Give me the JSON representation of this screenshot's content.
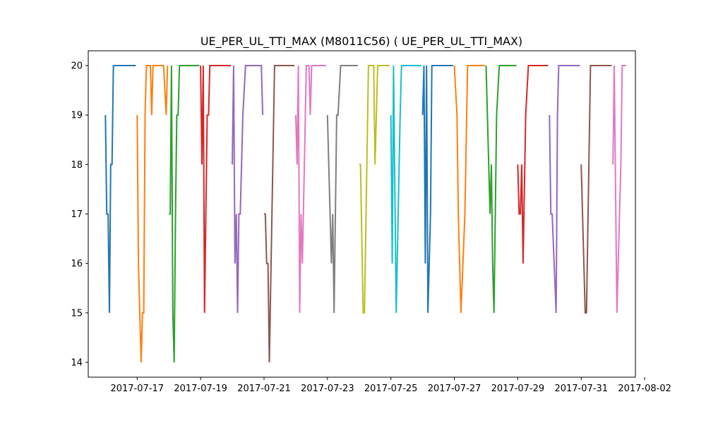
{
  "chart_data": {
    "type": "line",
    "title": "UE_PER_UL_TTI_MAX (M8011C56) ( UE_PER_UL_TTI_MAX)",
    "xlabel": "",
    "ylabel": "",
    "xlim": [
      "2017-07-15T11:00",
      "2017-08-01T17:00"
    ],
    "ylim": [
      13.7,
      20.3
    ],
    "x_ticks": [
      "2017-07-17",
      "2017-07-19",
      "2017-07-21",
      "2017-07-23",
      "2017-07-25",
      "2017-07-27",
      "2017-07-29",
      "2017-07-31",
      "2017-08-02"
    ],
    "y_ticks": [
      14,
      15,
      16,
      17,
      18,
      19,
      20
    ],
    "grid": false,
    "legend": "none",
    "series": [
      {
        "color": "#1f77b4",
        "points": [
          [
            "2017-07-16T00:00",
            19
          ],
          [
            "2017-07-16T01:00",
            17
          ],
          [
            "2017-07-16T02:00",
            17
          ],
          [
            "2017-07-16T03:00",
            15
          ],
          [
            "2017-07-16T04:00",
            18
          ],
          [
            "2017-07-16T05:00",
            18
          ],
          [
            "2017-07-16T06:00",
            20
          ],
          [
            "2017-07-16T12:00",
            20
          ],
          [
            "2017-07-16T23:00",
            20
          ]
        ]
      },
      {
        "color": "#ff7f0e",
        "points": [
          [
            "2017-07-17T00:00",
            19
          ],
          [
            "2017-07-17T01:00",
            16
          ],
          [
            "2017-07-17T03:00",
            14
          ],
          [
            "2017-07-17T04:00",
            15
          ],
          [
            "2017-07-17T05:00",
            15
          ],
          [
            "2017-07-17T06:00",
            19
          ],
          [
            "2017-07-17T07:00",
            20
          ],
          [
            "2017-07-17T10:00",
            20
          ],
          [
            "2017-07-17T11:00",
            19
          ],
          [
            "2017-07-17T12:00",
            20
          ],
          [
            "2017-07-17T20:00",
            20
          ],
          [
            "2017-07-17T22:00",
            19
          ],
          [
            "2017-07-17T23:00",
            20
          ]
        ]
      },
      {
        "color": "#2ca02c",
        "points": [
          [
            "2017-07-18T00:00",
            17
          ],
          [
            "2017-07-18T01:00",
            17
          ],
          [
            "2017-07-18T02:00",
            20
          ],
          [
            "2017-07-18T03:00",
            15
          ],
          [
            "2017-07-18T04:00",
            14
          ],
          [
            "2017-07-18T05:00",
            17
          ],
          [
            "2017-07-18T06:00",
            19
          ],
          [
            "2017-07-18T07:00",
            19
          ],
          [
            "2017-07-18T08:00",
            20
          ],
          [
            "2017-07-18T23:00",
            20
          ]
        ]
      },
      {
        "color": "#d62728",
        "points": [
          [
            "2017-07-19T00:00",
            20
          ],
          [
            "2017-07-19T01:00",
            18
          ],
          [
            "2017-07-19T02:00",
            20
          ],
          [
            "2017-07-19T03:00",
            15
          ],
          [
            "2017-07-19T04:00",
            17
          ],
          [
            "2017-07-19T05:00",
            19
          ],
          [
            "2017-07-19T06:00",
            19
          ],
          [
            "2017-07-19T07:00",
            20
          ],
          [
            "2017-07-19T23:00",
            20
          ]
        ]
      },
      {
        "color": "#9467bd",
        "points": [
          [
            "2017-07-20T00:00",
            18
          ],
          [
            "2017-07-20T01:00",
            20
          ],
          [
            "2017-07-20T02:00",
            16
          ],
          [
            "2017-07-20T03:00",
            17
          ],
          [
            "2017-07-20T04:00",
            15
          ],
          [
            "2017-07-20T05:00",
            17
          ],
          [
            "2017-07-20T06:00",
            17
          ],
          [
            "2017-07-20T08:00",
            19
          ],
          [
            "2017-07-20T10:00",
            20
          ],
          [
            "2017-07-20T22:00",
            20
          ],
          [
            "2017-07-20T23:00",
            19
          ]
        ]
      },
      {
        "color": "#8c564b",
        "points": [
          [
            "2017-07-21T00:00",
            17
          ],
          [
            "2017-07-21T01:00",
            17
          ],
          [
            "2017-07-21T02:00",
            16
          ],
          [
            "2017-07-21T03:00",
            16
          ],
          [
            "2017-07-21T04:00",
            14
          ],
          [
            "2017-07-21T08:00",
            20
          ],
          [
            "2017-07-21T23:00",
            20
          ]
        ]
      },
      {
        "color": "#e377c2",
        "points": [
          [
            "2017-07-22T00:00",
            19
          ],
          [
            "2017-07-22T01:00",
            18
          ],
          [
            "2017-07-22T02:00",
            20
          ],
          [
            "2017-07-22T03:00",
            15
          ],
          [
            "2017-07-22T04:00",
            17
          ],
          [
            "2017-07-22T05:00",
            16
          ],
          [
            "2017-07-22T08:00",
            20
          ],
          [
            "2017-07-22T10:00",
            20
          ],
          [
            "2017-07-22T11:00",
            19
          ],
          [
            "2017-07-22T12:00",
            20
          ],
          [
            "2017-07-22T23:00",
            20
          ]
        ]
      },
      {
        "color": "#7f7f7f",
        "points": [
          [
            "2017-07-23T00:00",
            19
          ],
          [
            "2017-07-23T03:00",
            16
          ],
          [
            "2017-07-23T04:00",
            17
          ],
          [
            "2017-07-23T05:00",
            15
          ],
          [
            "2017-07-23T07:00",
            19
          ],
          [
            "2017-07-23T08:00",
            19
          ],
          [
            "2017-07-23T10:00",
            20
          ],
          [
            "2017-07-23T23:00",
            20
          ]
        ]
      },
      {
        "color": "#bcbd22",
        "points": [
          [
            "2017-07-24T00:00",
            18
          ],
          [
            "2017-07-24T01:00",
            18
          ],
          [
            "2017-07-24T03:00",
            15
          ],
          [
            "2017-07-24T04:00",
            15
          ],
          [
            "2017-07-24T07:00",
            20
          ],
          [
            "2017-07-24T11:00",
            20
          ],
          [
            "2017-07-24T12:00",
            18
          ],
          [
            "2017-07-24T14:00",
            20
          ],
          [
            "2017-07-24T23:00",
            20
          ]
        ]
      },
      {
        "color": "#17becf",
        "points": [
          [
            "2017-07-25T00:00",
            19
          ],
          [
            "2017-07-25T01:00",
            16
          ],
          [
            "2017-07-25T02:00",
            20
          ],
          [
            "2017-07-25T04:00",
            15
          ],
          [
            "2017-07-25T07:00",
            19
          ],
          [
            "2017-07-25T08:00",
            20
          ],
          [
            "2017-07-25T23:00",
            20
          ]
        ]
      },
      {
        "color": "#1f77b4",
        "points": [
          [
            "2017-07-26T00:00",
            19
          ],
          [
            "2017-07-26T01:00",
            20
          ],
          [
            "2017-07-26T02:00",
            16
          ],
          [
            "2017-07-26T03:00",
            20
          ],
          [
            "2017-07-26T04:00",
            15
          ],
          [
            "2017-07-26T06:00",
            17
          ],
          [
            "2017-07-26T07:00",
            20
          ],
          [
            "2017-07-26T23:00",
            20
          ]
        ]
      },
      {
        "color": "#ff7f0e",
        "points": [
          [
            "2017-07-27T00:00",
            20
          ],
          [
            "2017-07-27T02:00",
            19
          ],
          [
            "2017-07-27T03:00",
            17
          ],
          [
            "2017-07-27T05:00",
            15
          ],
          [
            "2017-07-27T08:00",
            17
          ],
          [
            "2017-07-27T10:00",
            20
          ],
          [
            "2017-07-27T23:00",
            20
          ]
        ]
      },
      {
        "color": "#2ca02c",
        "points": [
          [
            "2017-07-28T00:00",
            20
          ],
          [
            "2017-07-28T03:00",
            17
          ],
          [
            "2017-07-28T04:00",
            18
          ],
          [
            "2017-07-28T05:00",
            16
          ],
          [
            "2017-07-28T06:00",
            15
          ],
          [
            "2017-07-28T08:00",
            19
          ],
          [
            "2017-07-28T10:00",
            20
          ],
          [
            "2017-07-28T23:00",
            20
          ]
        ]
      },
      {
        "color": "#d62728",
        "points": [
          [
            "2017-07-29T00:00",
            18
          ],
          [
            "2017-07-29T01:00",
            17
          ],
          [
            "2017-07-29T02:00",
            17
          ],
          [
            "2017-07-29T03:00",
            18
          ],
          [
            "2017-07-29T04:00",
            16
          ],
          [
            "2017-07-29T06:00",
            19
          ],
          [
            "2017-07-29T08:00",
            20
          ],
          [
            "2017-07-29T23:00",
            20
          ]
        ]
      },
      {
        "color": "#9467bd",
        "points": [
          [
            "2017-07-30T00:00",
            19
          ],
          [
            "2017-07-30T01:00",
            17
          ],
          [
            "2017-07-30T02:00",
            17
          ],
          [
            "2017-07-30T05:00",
            15
          ],
          [
            "2017-07-30T06:00",
            19
          ],
          [
            "2017-07-30T07:00",
            20
          ],
          [
            "2017-07-30T23:00",
            20
          ]
        ]
      },
      {
        "color": "#8c564b",
        "points": [
          [
            "2017-07-31T00:00",
            18
          ],
          [
            "2017-07-31T03:00",
            15
          ],
          [
            "2017-07-31T04:00",
            15
          ],
          [
            "2017-07-31T07:00",
            20
          ],
          [
            "2017-07-31T23:00",
            20
          ]
        ]
      },
      {
        "color": "#e377c2",
        "points": [
          [
            "2017-08-01T00:00",
            18
          ],
          [
            "2017-08-01T01:00",
            20
          ],
          [
            "2017-08-01T03:00",
            15
          ],
          [
            "2017-08-01T06:00",
            18
          ],
          [
            "2017-08-01T07:00",
            20
          ],
          [
            "2017-08-01T10:00",
            20
          ]
        ]
      }
    ]
  }
}
